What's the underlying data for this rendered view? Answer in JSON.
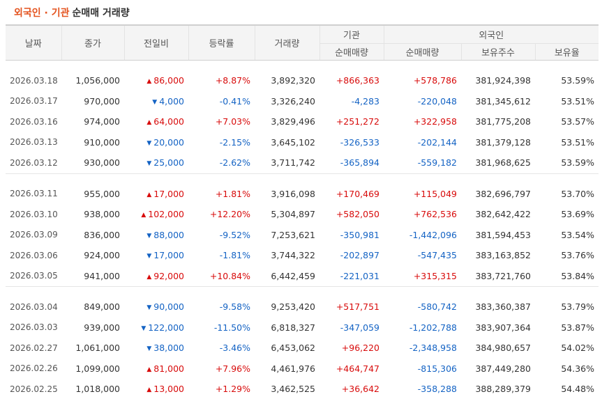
{
  "title": {
    "highlight": "외국인 · 기관",
    "rest": "순매매 거래량"
  },
  "columns": {
    "date": "날짜",
    "close": "종가",
    "change": "전일비",
    "rate": "등락률",
    "volume": "거래량",
    "institution": "기관",
    "institution_net": "순매매량",
    "foreign": "외국인",
    "foreign_net": "순매매량",
    "foreign_shares": "보유주수",
    "foreign_ratio": "보유율"
  },
  "groups": [
    [
      {
        "date": "2026.03.18",
        "close": "1,056,000",
        "dir": "up",
        "change": "86,000",
        "rate": "+8.87%",
        "volume": "3,892,320",
        "inst": "+866,363",
        "foreign": "+578,786",
        "shares": "381,924,398",
        "ratio": "53.59%"
      },
      {
        "date": "2026.03.17",
        "close": "970,000",
        "dir": "down",
        "change": "4,000",
        "rate": "-0.41%",
        "volume": "3,326,240",
        "inst": "-4,283",
        "foreign": "-220,048",
        "shares": "381,345,612",
        "ratio": "53.51%"
      },
      {
        "date": "2026.03.16",
        "close": "974,000",
        "dir": "up",
        "change": "64,000",
        "rate": "+7.03%",
        "volume": "3,829,496",
        "inst": "+251,272",
        "foreign": "+322,958",
        "shares": "381,775,208",
        "ratio": "53.57%"
      },
      {
        "date": "2026.03.13",
        "close": "910,000",
        "dir": "down",
        "change": "20,000",
        "rate": "-2.15%",
        "volume": "3,645,102",
        "inst": "-326,533",
        "foreign": "-202,144",
        "shares": "381,379,128",
        "ratio": "53.51%"
      },
      {
        "date": "2026.03.12",
        "close": "930,000",
        "dir": "down",
        "change": "25,000",
        "rate": "-2.62%",
        "volume": "3,711,742",
        "inst": "-365,894",
        "foreign": "-559,182",
        "shares": "381,968,625",
        "ratio": "53.59%"
      }
    ],
    [
      {
        "date": "2026.03.11",
        "close": "955,000",
        "dir": "up",
        "change": "17,000",
        "rate": "+1.81%",
        "volume": "3,916,098",
        "inst": "+170,469",
        "foreign": "+115,049",
        "shares": "382,696,797",
        "ratio": "53.70%"
      },
      {
        "date": "2026.03.10",
        "close": "938,000",
        "dir": "up",
        "change": "102,000",
        "rate": "+12.20%",
        "volume": "5,304,897",
        "inst": "+582,050",
        "foreign": "+762,536",
        "shares": "382,642,422",
        "ratio": "53.69%"
      },
      {
        "date": "2026.03.09",
        "close": "836,000",
        "dir": "down",
        "change": "88,000",
        "rate": "-9.52%",
        "volume": "7,253,621",
        "inst": "-350,981",
        "foreign": "-1,442,096",
        "shares": "381,594,453",
        "ratio": "53.54%"
      },
      {
        "date": "2026.03.06",
        "close": "924,000",
        "dir": "down",
        "change": "17,000",
        "rate": "-1.81%",
        "volume": "3,744,322",
        "inst": "-202,897",
        "foreign": "-547,435",
        "shares": "383,163,852",
        "ratio": "53.76%"
      },
      {
        "date": "2026.03.05",
        "close": "941,000",
        "dir": "up",
        "change": "92,000",
        "rate": "+10.84%",
        "volume": "6,442,459",
        "inst": "-221,031",
        "foreign": "+315,315",
        "shares": "383,721,760",
        "ratio": "53.84%"
      }
    ],
    [
      {
        "date": "2026.03.04",
        "close": "849,000",
        "dir": "down",
        "change": "90,000",
        "rate": "-9.58%",
        "volume": "9,253,420",
        "inst": "+517,751",
        "foreign": "-580,742",
        "shares": "383,360,387",
        "ratio": "53.79%"
      },
      {
        "date": "2026.03.03",
        "close": "939,000",
        "dir": "down",
        "change": "122,000",
        "rate": "-11.50%",
        "volume": "6,818,327",
        "inst": "-347,059",
        "foreign": "-1,202,788",
        "shares": "383,907,364",
        "ratio": "53.87%"
      },
      {
        "date": "2026.02.27",
        "close": "1,061,000",
        "dir": "down",
        "change": "38,000",
        "rate": "-3.46%",
        "volume": "6,453,062",
        "inst": "+96,220",
        "foreign": "-2,348,958",
        "shares": "384,980,657",
        "ratio": "54.02%"
      },
      {
        "date": "2026.02.26",
        "close": "1,099,000",
        "dir": "up",
        "change": "81,000",
        "rate": "+7.96%",
        "volume": "4,461,976",
        "inst": "+464,747",
        "foreign": "-815,306",
        "shares": "387,449,280",
        "ratio": "54.36%"
      },
      {
        "date": "2026.02.25",
        "close": "1,018,000",
        "dir": "up",
        "change": "13,000",
        "rate": "+1.29%",
        "volume": "3,462,525",
        "inst": "+36,642",
        "foreign": "-358,288",
        "shares": "388,289,379",
        "ratio": "54.48%"
      }
    ]
  ],
  "arrows": {
    "up": "▲",
    "down": "▼"
  },
  "colors": {
    "title_accent": "#e4531e",
    "up": "#d80b0b",
    "down": "#1463c4",
    "header_bg": "#f4f4f4"
  }
}
